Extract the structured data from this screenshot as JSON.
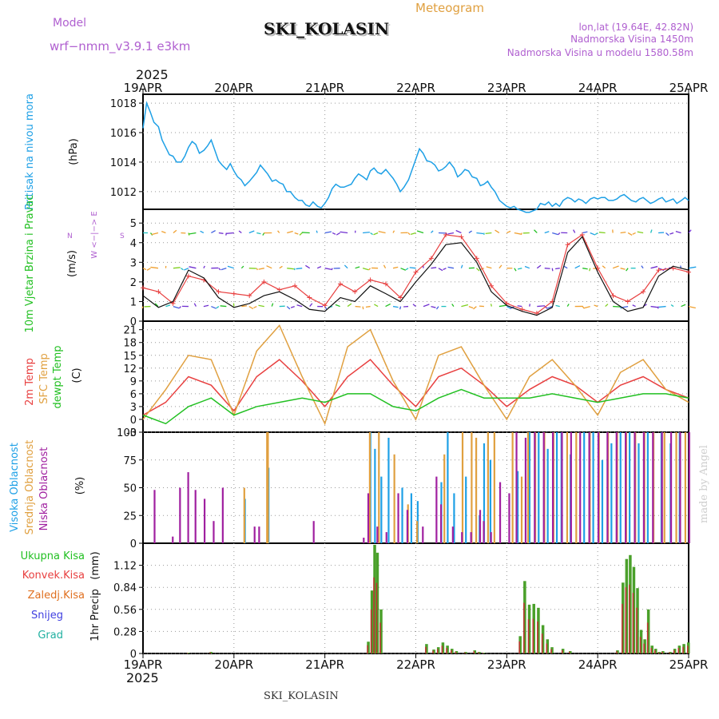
{
  "header": {
    "model_label": "Model",
    "model_name": "wrf−nmm_v3.9.1  e3km",
    "title": "SKI_KOLASIN",
    "subtitle": "Meteogram",
    "coords": "lon,lat (19.64E, 42.82N)",
    "altitude": "Nadmorska Visina 1450m",
    "model_altitude": "Nadmorska Visina u modelu 1580.58m",
    "year_top": "2025",
    "year_bottom": "2025",
    "footer_station": "SKI_KOLASIN",
    "credit": "made by Angel"
  },
  "colors": {
    "purple": "#b060d0",
    "sky": "#1ea0e6",
    "green": "#22c022",
    "red": "#e84040",
    "orange": "#e0a040",
    "magenta": "#a020a0",
    "pressure": "#1ea0e6",
    "temp2m": "#e84040",
    "sfc": "#e0a040",
    "dew": "#22c022",
    "precip_total": "#4aa02a",
    "precip_conv": "#c03030",
    "snow": "#4040e0"
  },
  "chart_data": [
    {
      "type": "line",
      "name": "pressure",
      "title": "Pritisak na nivou mora",
      "ylabel": "(hPa)",
      "ylim": [
        1010.8,
        1018.6
      ],
      "yticks": [
        1012,
        1014,
        1016,
        1018
      ],
      "x_days": [
        0,
        0.04,
        0.08,
        0.12,
        0.17,
        0.21,
        0.25,
        0.29,
        0.33,
        0.37,
        0.42,
        0.46,
        0.5,
        0.54,
        0.58,
        0.62,
        0.67,
        0.71,
        0.75,
        0.79,
        0.83,
        0.87,
        0.92,
        0.96,
        1,
        1.04,
        1.08,
        1.12,
        1.17,
        1.21,
        1.25,
        1.29,
        1.33,
        1.37,
        1.42,
        1.46,
        1.5,
        1.54,
        1.58,
        1.62,
        1.67,
        1.71,
        1.75,
        1.79,
        1.83,
        1.87,
        1.92,
        1.96,
        2,
        2.04,
        2.08,
        2.12,
        2.17,
        2.21,
        2.25,
        2.29,
        2.33,
        2.37,
        2.42,
        2.46,
        2.5,
        2.54,
        2.58,
        2.62,
        2.67,
        2.71,
        2.75,
        2.79,
        2.83,
        2.87,
        2.92,
        2.96,
        3,
        3.04,
        3.08,
        3.12,
        3.17,
        3.21,
        3.25,
        3.29,
        3.33,
        3.37,
        3.42,
        3.46,
        3.5,
        3.54,
        3.58,
        3.62,
        3.67,
        3.71,
        3.75,
        3.79,
        3.83,
        3.87,
        3.92,
        3.96,
        4,
        4.04,
        4.08,
        4.12,
        4.17,
        4.21,
        4.25,
        4.29,
        4.33,
        4.37,
        4.42,
        4.46,
        4.5,
        4.54,
        4.58,
        4.62,
        4.67,
        4.71,
        4.75,
        4.79,
        4.83,
        4.87,
        4.92,
        4.96,
        5,
        5.04,
        5.08,
        5.12,
        5.17,
        5.21,
        5.25,
        5.29,
        5.33,
        5.37,
        5.42,
        5.46,
        5.5,
        5.54,
        5.58,
        5.62,
        5.67,
        5.71,
        5.75,
        5.79,
        5.83,
        5.87,
        5.92,
        5.96,
        6
      ],
      "values": [
        1016.3,
        1018.0,
        1017.4,
        1016.7,
        1016.4,
        1015.5,
        1015.0,
        1014.5,
        1014.4,
        1014.0,
        1014.0,
        1014.4,
        1015.0,
        1015.4,
        1015.2,
        1014.6,
        1014.8,
        1015.1,
        1015.5,
        1014.8,
        1014.1,
        1013.8,
        1013.5,
        1013.9,
        1013.4,
        1013.0,
        1012.8,
        1012.4,
        1012.7,
        1013.0,
        1013.3,
        1013.8,
        1013.5,
        1013.2,
        1012.7,
        1012.8,
        1012.6,
        1012.5,
        1012.0,
        1012.0,
        1011.6,
        1011.4,
        1011.4,
        1011.1,
        1011.0,
        1011.3,
        1011.0,
        1010.9,
        1011.2,
        1011.6,
        1012.2,
        1012.5,
        1012.3,
        1012.3,
        1012.4,
        1012.5,
        1012.9,
        1013.2,
        1013.0,
        1012.8,
        1013.4,
        1013.6,
        1013.3,
        1013.2,
        1013.5,
        1013.2,
        1012.9,
        1012.5,
        1012.0,
        1012.3,
        1012.8,
        1013.5,
        1014.2,
        1014.9,
        1014.6,
        1014.1,
        1014.0,
        1013.8,
        1013.4,
        1013.5,
        1013.7,
        1014.0,
        1013.6,
        1013.0,
        1013.2,
        1013.5,
        1013.4,
        1013.0,
        1012.9,
        1012.4,
        1012.5,
        1012.7,
        1012.3,
        1012.0,
        1011.4,
        1011.2,
        1011.0,
        1010.9,
        1011.0,
        1010.8,
        1010.7,
        1010.6,
        1010.6,
        1010.7,
        1010.8,
        1011.2,
        1011.1,
        1011.3,
        1011.0,
        1011.2,
        1011.0,
        1011.4,
        1011.6,
        1011.5,
        1011.3,
        1011.5,
        1011.4,
        1011.2,
        1011.5,
        1011.6,
        1011.5,
        1011.6,
        1011.6,
        1011.4,
        1011.4,
        1011.5,
        1011.7,
        1011.8,
        1011.6,
        1011.4,
        1011.3,
        1011.5,
        1011.6,
        1011.4,
        1011.2,
        1011.3,
        1011.5,
        1011.6,
        1011.3,
        1011.4,
        1011.5,
        1011.2,
        1011.4,
        1011.6,
        1011.4
      ]
    },
    {
      "type": "line",
      "name": "wind",
      "title": "10m Vjetar Brzina i Pravac",
      "ylabel": "(m/s)",
      "compass": "W <−|−> E",
      "compass_n": "N",
      "compass_s": "S",
      "ylim": [
        0,
        5.7
      ],
      "yticks": [
        0,
        1,
        2,
        3,
        4,
        5
      ],
      "barb_rows": [
        4.5,
        2.7,
        0.75
      ],
      "x_days": [
        0,
        0.17,
        0.33,
        0.5,
        0.67,
        0.83,
        1,
        1.17,
        1.33,
        1.5,
        1.67,
        1.83,
        2,
        2.17,
        2.33,
        2.5,
        2.67,
        2.83,
        3,
        3.17,
        3.33,
        3.5,
        3.67,
        3.83,
        4,
        4.17,
        4.33,
        4.5,
        4.67,
        4.83,
        5,
        5.17,
        5.33,
        5.5,
        5.67,
        5.83,
        6
      ],
      "speed_black": [
        1.3,
        0.7,
        1.0,
        2.6,
        2.2,
        1.2,
        0.7,
        0.9,
        1.3,
        1.5,
        1.1,
        0.6,
        0.5,
        1.2,
        1.0,
        1.8,
        1.4,
        1.0,
        2.0,
        2.9,
        3.9,
        4.0,
        3.0,
        1.5,
        0.8,
        0.5,
        0.3,
        0.7,
        3.5,
        4.3,
        2.5,
        1.0,
        0.5,
        0.7,
        2.3,
        2.8,
        2.6
      ],
      "speed_red": [
        1.7,
        1.5,
        0.9,
        2.3,
        2.1,
        1.5,
        1.4,
        1.3,
        2.0,
        1.6,
        1.8,
        1.2,
        0.8,
        1.9,
        1.5,
        2.1,
        1.9,
        1.2,
        2.5,
        3.2,
        4.4,
        4.3,
        3.2,
        1.8,
        0.9,
        0.6,
        0.4,
        1.0,
        3.9,
        4.4,
        2.7,
        1.3,
        1.0,
        1.5,
        2.6,
        2.7,
        2.5
      ]
    },
    {
      "type": "line",
      "name": "temperature",
      "title": "2m Temp",
      "title2": "SFC Temp",
      "title3": "dewpt Temp",
      "ylabel": "(C)",
      "ylim": [
        -3,
        23
      ],
      "yticks": [
        -3,
        0,
        3,
        6,
        9,
        12,
        15,
        18,
        21
      ],
      "x_days": [
        0,
        0.25,
        0.5,
        0.75,
        1,
        1.25,
        1.5,
        1.75,
        2,
        2.25,
        2.5,
        2.75,
        3,
        3.25,
        3.5,
        3.75,
        4,
        4.25,
        4.5,
        4.75,
        5,
        5.25,
        5.5,
        5.75,
        6
      ],
      "series": [
        {
          "name": "2m Temp",
          "values": [
            1,
            4,
            10,
            8,
            2,
            10,
            14,
            9,
            3,
            10,
            14,
            8,
            3,
            10,
            12,
            8,
            3,
            7,
            10,
            8,
            4,
            8,
            10,
            7,
            5
          ]
        },
        {
          "name": "SFC Temp",
          "values": [
            0,
            7,
            15,
            14,
            1,
            16,
            22,
            10,
            -1,
            17,
            21,
            9,
            0,
            15,
            17,
            8,
            0,
            10,
            14,
            8,
            1,
            11,
            14,
            7,
            4
          ]
        },
        {
          "name": "dewpt Temp",
          "values": [
            1,
            -1,
            3,
            5,
            1,
            3,
            4,
            5,
            4,
            6,
            6,
            3,
            2,
            5,
            7,
            5,
            5,
            5,
            6,
            5,
            4,
            5,
            6,
            6,
            5
          ]
        }
      ]
    },
    {
      "type": "bar",
      "name": "clouds",
      "title": "Visoka Oblacnost",
      "title2": "Srednja Oblacnost",
      "title3": "Niska Oblacnost",
      "ylabel": "(%)",
      "ylim": [
        0,
        100
      ],
      "yticks": [
        0,
        25,
        50,
        75,
        100
      ],
      "series": [
        {
          "name": "Visoka",
          "x_days": [
            1.12,
            1.38,
            2.5,
            2.55,
            2.62,
            2.7,
            2.85,
            2.95,
            3.02,
            3.28,
            3.35,
            3.42,
            3.55,
            3.7,
            3.75,
            3.82,
            4.12,
            4.25,
            4.35,
            4.45,
            4.55,
            4.6,
            4.7,
            4.85,
            4.95,
            5.05,
            5.15,
            5.25,
            5.35,
            5.45,
            5.55,
            5.7,
            5.8,
            5.9
          ],
          "values": [
            40,
            68,
            100,
            85,
            60,
            95,
            50,
            45,
            38,
            55,
            100,
            45,
            60,
            25,
            90,
            75,
            65,
            100,
            100,
            85,
            100,
            100,
            80,
            100,
            100,
            75,
            90,
            100,
            100,
            90,
            100,
            100,
            90,
            100
          ]
        },
        {
          "name": "Srednja",
          "x_days": [
            1.1,
            1.35,
            1.36,
            2.48,
            2.58,
            2.75,
            2.9,
            3.0,
            3.3,
            3.5,
            3.6,
            3.65,
            3.78,
            3.85,
            4.05,
            4.15,
            4.22,
            4.3,
            4.4,
            4.5,
            4.65,
            4.75,
            4.9,
            5.0,
            5.1,
            5.2,
            5.3,
            5.4,
            5.5,
            5.6,
            5.72,
            5.85,
            5.95
          ],
          "values": [
            50,
            100,
            100,
            100,
            100,
            80,
            35,
            20,
            80,
            100,
            100,
            95,
            100,
            100,
            100,
            60,
            100,
            100,
            100,
            100,
            100,
            100,
            100,
            100,
            100,
            100,
            100,
            100,
            100,
            100,
            100,
            100,
            100
          ]
        },
        {
          "name": "Niska",
          "x_days": [
            0.1,
            0.3,
            0.38,
            0.47,
            0.55,
            0.65,
            0.75,
            0.85,
            1.2,
            1.25,
            1.85,
            2.4,
            2.45,
            2.55,
            2.65,
            2.78,
            2.88,
            3.05,
            3.2,
            3.25,
            3.38,
            3.48,
            3.58,
            3.68,
            3.72,
            3.8,
            3.9,
            4.0,
            4.08,
            4.18,
            4.28,
            4.38,
            4.48,
            4.58,
            4.68,
            4.78,
            4.88,
            4.98,
            5.08,
            5.18,
            5.28,
            5.38,
            5.48,
            5.58,
            5.68,
            5.78,
            5.88,
            5.98
          ],
          "values": [
            48,
            6,
            50,
            64,
            48,
            40,
            20,
            50,
            15,
            15,
            20,
            5,
            45,
            15,
            10,
            45,
            30,
            15,
            60,
            35,
            15,
            10,
            10,
            30,
            20,
            10,
            55,
            45,
            100,
            95,
            100,
            100,
            100,
            100,
            100,
            100,
            100,
            100,
            100,
            100,
            100,
            100,
            100,
            100,
            100,
            100,
            100,
            100
          ]
        }
      ]
    },
    {
      "type": "bar",
      "name": "precip",
      "title": "1hr Precip",
      "ylabel": "(mm)",
      "legend": [
        "Ukupna Kisa",
        "Konvek.Kisa",
        "Zaledj.Kisa",
        "Snijeg",
        "Grad"
      ],
      "ylim": [
        0,
        1.4
      ],
      "yticks": [
        "0",
        "0.28",
        "0.56",
        "0.84",
        "1.12"
      ],
      "x_days": [
        0.5,
        0.75,
        2.48,
        2.52,
        2.55,
        2.58,
        2.62,
        3.12,
        3.2,
        3.25,
        3.3,
        3.35,
        3.4,
        3.45,
        3.55,
        3.65,
        3.7,
        3.75,
        4.15,
        4.2,
        4.25,
        4.3,
        4.35,
        4.4,
        4.45,
        4.5,
        4.62,
        4.7,
        5.22,
        5.28,
        5.32,
        5.36,
        5.4,
        5.44,
        5.48,
        5.52,
        5.56,
        5.6,
        5.64,
        5.68,
        5.72,
        5.8,
        5.85,
        5.9,
        5.95,
        6.0
      ],
      "values": [
        0.01,
        0.02,
        0.15,
        0.8,
        1.38,
        1.28,
        0.56,
        0.12,
        0.05,
        0.08,
        0.14,
        0.1,
        0.06,
        0.03,
        0.02,
        0.04,
        0.02,
        0.01,
        0.22,
        0.92,
        0.62,
        0.63,
        0.58,
        0.36,
        0.18,
        0.08,
        0.06,
        0.03,
        0.04,
        0.9,
        1.2,
        1.25,
        1.1,
        0.83,
        0.3,
        0.18,
        0.56,
        0.1,
        0.06,
        0.02,
        0.03,
        0.02,
        0.06,
        0.1,
        0.12,
        0.14
      ]
    }
  ],
  "x_axis": {
    "days": [
      "19APR",
      "20APR",
      "21APR",
      "22APR",
      "23APR",
      "24APR",
      "25APR"
    ]
  }
}
